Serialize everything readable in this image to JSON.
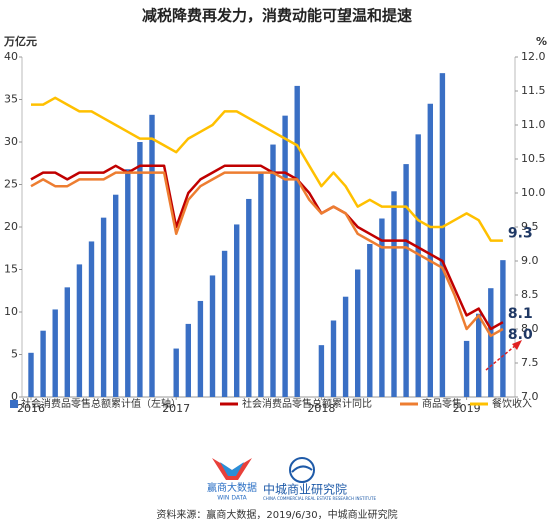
{
  "chart_data": {
    "type": "bar",
    "title": "减税降费再发力，消费动能可望温和提速",
    "y_unit": "万亿元",
    "y2_unit": "%",
    "categories": [
      "2016",
      null,
      null,
      null,
      null,
      null,
      null,
      null,
      null,
      null,
      null,
      null,
      "2017",
      null,
      null,
      null,
      null,
      null,
      null,
      null,
      null,
      null,
      null,
      null,
      "2018",
      null,
      null,
      null,
      null,
      null,
      null,
      null,
      null,
      null,
      null,
      null,
      "2019",
      null,
      null,
      null
    ],
    "ylim": [
      0,
      40
    ],
    "yticks": [
      0,
      5,
      10,
      15,
      20,
      25,
      30,
      35,
      40
    ],
    "y2lim": [
      7,
      12
    ],
    "y2ticks": [
      {
        "value": 7,
        "label": "7.0"
      },
      7.5,
      {
        "value": 8,
        "label": "8.0"
      },
      8.5,
      {
        "value": 9,
        "label": "9.0"
      },
      9.5,
      {
        "value": 10,
        "label": "10.0"
      },
      10.5,
      {
        "value": 11,
        "label": "11.0"
      },
      11.5,
      {
        "value": 12,
        "label": "12.0"
      }
    ],
    "grid": false,
    "legend": "bottom",
    "series": [
      {
        "name": "社会消费品零售总额累计值（左轴）",
        "type": "bar",
        "axis": "y",
        "color": "#3a6fc4",
        "values": [
          5.2,
          7.8,
          10.3,
          12.9,
          15.6,
          18.3,
          21.1,
          23.8,
          26.8,
          30.0,
          33.2,
          null,
          5.7,
          8.6,
          11.3,
          14.3,
          17.2,
          20.3,
          23.3,
          26.3,
          29.7,
          33.1,
          36.6,
          null,
          6.1,
          9.0,
          11.8,
          15.0,
          18.0,
          21.0,
          24.2,
          27.4,
          30.9,
          34.5,
          38.1,
          null,
          6.6,
          9.8,
          12.8,
          16.1
        ]
      },
      {
        "name": "社会消费品零售总额累计同比",
        "type": "line",
        "axis": "y2",
        "color": "#c00000",
        "values": [
          10.2,
          10.3,
          10.3,
          10.2,
          10.3,
          10.3,
          10.3,
          10.4,
          10.3,
          10.4,
          10.4,
          10.4,
          9.5,
          10.0,
          10.2,
          10.3,
          10.4,
          10.4,
          10.4,
          10.4,
          10.3,
          10.3,
          10.2,
          10.0,
          9.7,
          9.8,
          9.7,
          9.5,
          9.4,
          9.3,
          9.3,
          9.3,
          9.2,
          9.1,
          9.0,
          8.6,
          8.2,
          8.3,
          8.0,
          8.1
        ],
        "value_labels": [
          null,
          null,
          null,
          null,
          null,
          null,
          null,
          null,
          null,
          null,
          null,
          null,
          null,
          null,
          null,
          null,
          null,
          null,
          null,
          null,
          null,
          null,
          null,
          null,
          null,
          null,
          null,
          null,
          null,
          null,
          null,
          null,
          null,
          null,
          null,
          null,
          null,
          null,
          null,
          "8.1"
        ]
      },
      {
        "name": "商品零售",
        "type": "line",
        "axis": "y2",
        "color": "#ed7d31",
        "values": [
          10.1,
          10.2,
          10.1,
          10.1,
          10.2,
          10.2,
          10.2,
          10.3,
          10.3,
          10.3,
          10.3,
          10.3,
          9.4,
          9.9,
          10.1,
          10.2,
          10.3,
          10.3,
          10.3,
          10.3,
          10.3,
          10.2,
          10.2,
          9.9,
          9.7,
          9.8,
          9.7,
          9.4,
          9.3,
          9.2,
          9.2,
          9.2,
          9.1,
          9.0,
          8.9,
          8.5,
          8.0,
          8.2,
          7.9,
          8.0
        ],
        "value_labels": [
          null,
          null,
          null,
          null,
          null,
          null,
          null,
          null,
          null,
          null,
          null,
          null,
          null,
          null,
          null,
          null,
          null,
          null,
          null,
          null,
          null,
          null,
          null,
          null,
          null,
          null,
          null,
          null,
          null,
          null,
          null,
          null,
          null,
          null,
          null,
          null,
          null,
          null,
          null,
          "8.0"
        ]
      },
      {
        "name": "餐饮收入",
        "type": "line",
        "axis": "y2",
        "color": "#ffc000",
        "values": [
          11.3,
          11.3,
          11.4,
          11.3,
          11.2,
          11.2,
          11.1,
          11.0,
          10.9,
          10.8,
          10.8,
          10.7,
          10.6,
          10.8,
          10.9,
          11.0,
          11.2,
          11.2,
          11.1,
          11.0,
          10.9,
          10.8,
          10.7,
          10.4,
          10.1,
          10.3,
          10.1,
          9.8,
          9.9,
          9.8,
          9.8,
          9.8,
          9.6,
          9.5,
          9.5,
          9.6,
          9.7,
          9.6,
          9.3,
          9.3
        ],
        "value_labels": [
          null,
          null,
          null,
          null,
          null,
          null,
          null,
          null,
          null,
          null,
          null,
          null,
          null,
          null,
          null,
          null,
          null,
          null,
          null,
          null,
          null,
          null,
          null,
          null,
          null,
          null,
          null,
          null,
          null,
          null,
          null,
          null,
          null,
          null,
          null,
          null,
          null,
          null,
          null,
          "9.3"
        ]
      }
    ],
    "logos": [
      {
        "name": "赢商大数据",
        "sub": "WIN DATA"
      },
      {
        "name": "中城商业研究院",
        "sub": "CHINA COMMERCIAL REAL ESTATE RESEARCH INSTITUTE"
      }
    ],
    "source": "资料来源：赢商大数据，2019/6/30，中城商业研究院"
  }
}
